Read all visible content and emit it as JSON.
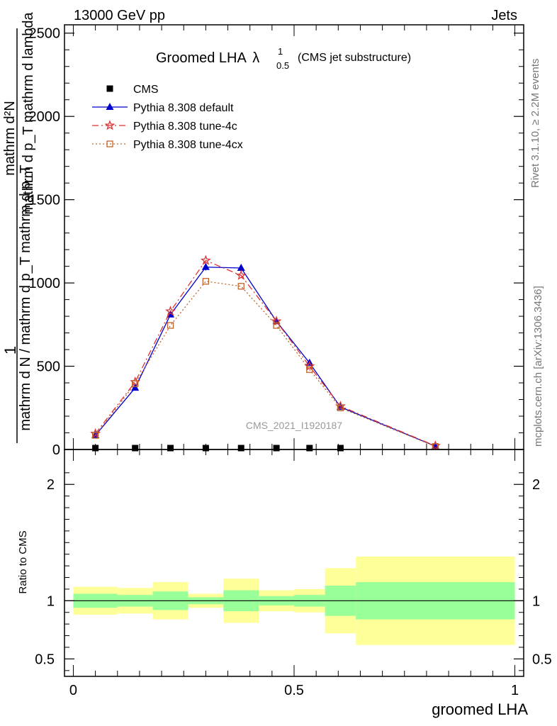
{
  "header": {
    "energy_label": "13000 GeV pp",
    "process_label": "Jets"
  },
  "side_labels": {
    "rivet": "Rivet 3.1.10, ≥ 2.2M events",
    "mcplots": "mcplots.cern.ch [arXiv:1306.3436]"
  },
  "watermark": "CMS_2021_I1920187",
  "colors": {
    "cms": "#000000",
    "default": "#0000cc",
    "tune4c": "#dd3333",
    "tune4cx": "#c0632a",
    "band_inner": "#99ff99",
    "band_outer": "#ffff99"
  },
  "chart_data": [
    {
      "type": "line",
      "title_main": "Groomed LHA",
      "title_lambda": "λ",
      "title_sup": "1",
      "title_sub": "0.5",
      "title_suffix": "(CMS jet substructure)",
      "ylabel_top": "1",
      "ylabel_numerator": "mathrm d²N",
      "ylabel_numerator2": "mathrm d p_T mathrm d lambda",
      "ylabel_denominator": "mathrm d N / mathrm d p_T mathrm d p_T",
      "xlim": [
        -0.02,
        1.02
      ],
      "ylim": [
        0,
        2550
      ],
      "yticks": [
        {
          "value": 0,
          "label": "0"
        },
        {
          "value": 500,
          "label": "500"
        },
        {
          "value": 1000,
          "label": "1000"
        },
        {
          "value": 1500,
          "label": "1500"
        },
        {
          "value": 2000,
          "label": "2000"
        },
        {
          "value": 2500,
          "label": "2500"
        }
      ],
      "bins": [
        {
          "lo": 0.0,
          "hi": 0.1
        },
        {
          "lo": 0.1,
          "hi": 0.18
        },
        {
          "lo": 0.18,
          "hi": 0.26
        },
        {
          "lo": 0.26,
          "hi": 0.34
        },
        {
          "lo": 0.34,
          "hi": 0.42
        },
        {
          "lo": 0.42,
          "hi": 0.5
        },
        {
          "lo": 0.5,
          "hi": 0.57
        },
        {
          "lo": 0.57,
          "hi": 0.64
        },
        {
          "lo": 0.64,
          "hi": 1.0
        }
      ],
      "series": [
        {
          "name": "CMS",
          "key": "cms",
          "marker": "square",
          "x": [
            0.05,
            0.14,
            0.22,
            0.3,
            0.38,
            0.46,
            0.535,
            0.605
          ],
          "y": [
            0,
            0,
            0,
            0,
            0,
            0,
            0,
            0
          ]
        },
        {
          "name": "Pythia 8.308 default",
          "key": "default",
          "marker": "triangle",
          "dash": "",
          "x": [
            0.05,
            0.14,
            0.22,
            0.3,
            0.38,
            0.46,
            0.535,
            0.605,
            0.82
          ],
          "y": [
            85,
            370,
            810,
            1095,
            1090,
            770,
            520,
            255,
            20
          ],
          "err": [
            8,
            12,
            16,
            20,
            22,
            14,
            12,
            9,
            4
          ]
        },
        {
          "name": "Pythia 8.308 tune-4c",
          "key": "tune4c",
          "marker": "star",
          "dash": "9 4 2 4",
          "x": [
            0.05,
            0.14,
            0.22,
            0.3,
            0.38,
            0.46,
            0.535,
            0.605,
            0.82
          ],
          "y": [
            95,
            405,
            830,
            1135,
            1045,
            770,
            500,
            260,
            22
          ]
        },
        {
          "name": "Pythia 8.308 tune-4cx",
          "key": "tune4cx",
          "marker": "open-square",
          "dash": "2 3",
          "x": [
            0.05,
            0.14,
            0.22,
            0.3,
            0.38,
            0.46,
            0.535,
            0.605,
            0.82
          ],
          "y": [
            85,
            395,
            745,
            1010,
            980,
            745,
            480,
            250,
            18
          ]
        }
      ]
    },
    {
      "type": "area",
      "ylabel": "Ratio to CMS",
      "xlabel": "groomed LHA",
      "xlim": [
        -0.02,
        1.02
      ],
      "ylim": [
        0.35,
        2.3
      ],
      "yticks": [
        {
          "value": 0.5,
          "label": "0.5"
        },
        {
          "value": 1,
          "label": "1"
        },
        {
          "value": 2,
          "label": "2"
        }
      ],
      "xticks": [
        {
          "value": 0,
          "label": "0"
        },
        {
          "value": 0.5,
          "label": "0.5"
        },
        {
          "value": 1,
          "label": "1"
        }
      ],
      "reference": 1,
      "bands": [
        {
          "lo": 0.0,
          "hi": 0.1,
          "inner": [
            0.94,
            1.06
          ],
          "outer": [
            0.88,
            1.12
          ]
        },
        {
          "lo": 0.1,
          "hi": 0.18,
          "inner": [
            0.95,
            1.05
          ],
          "outer": [
            0.89,
            1.11
          ]
        },
        {
          "lo": 0.18,
          "hi": 0.26,
          "inner": [
            0.92,
            1.08
          ],
          "outer": [
            0.84,
            1.16
          ]
        },
        {
          "lo": 0.26,
          "hi": 0.34,
          "inner": [
            0.97,
            1.03
          ],
          "outer": [
            0.94,
            1.06
          ]
        },
        {
          "lo": 0.34,
          "hi": 0.42,
          "inner": [
            0.91,
            1.09
          ],
          "outer": [
            0.81,
            1.19
          ]
        },
        {
          "lo": 0.42,
          "hi": 0.5,
          "inner": [
            0.96,
            1.04
          ],
          "outer": [
            0.91,
            1.09
          ]
        },
        {
          "lo": 0.5,
          "hi": 0.57,
          "inner": [
            0.95,
            1.05
          ],
          "outer": [
            0.9,
            1.1
          ]
        },
        {
          "lo": 0.57,
          "hi": 0.64,
          "inner": [
            0.87,
            1.13
          ],
          "outer": [
            0.72,
            1.28
          ]
        },
        {
          "lo": 0.64,
          "hi": 1.0,
          "inner": [
            0.84,
            1.16
          ],
          "outer": [
            0.62,
            1.38
          ]
        }
      ]
    }
  ]
}
